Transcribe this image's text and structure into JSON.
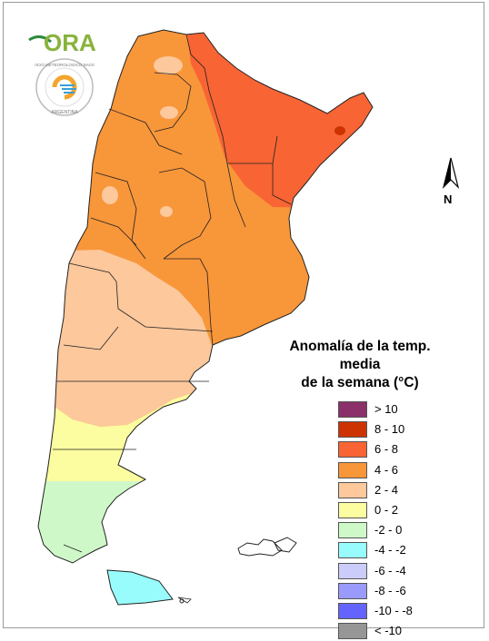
{
  "logos": {
    "ora_text": "ORA",
    "seal_text": "SERVICIO METEOROLÓGICO NACIONAL · ARGENTINA"
  },
  "legend": {
    "title_line1": "Anomalía de la temp. media",
    "title_line2": "de la semana (°C)",
    "items": [
      {
        "label": "> 10",
        "color": "#8b3068"
      },
      {
        "label": "8 - 10",
        "color": "#cc3300"
      },
      {
        "label": "6 - 8",
        "color": "#f86434"
      },
      {
        "label": "4 - 6",
        "color": "#f8963a"
      },
      {
        "label": "2 - 4",
        "color": "#fcc89c"
      },
      {
        "label": "0 - 2",
        "color": "#fcfca0"
      },
      {
        "label": "-2 - 0",
        "color": "#cff8c8"
      },
      {
        "label": "-4 - -2",
        "color": "#98fcfc"
      },
      {
        "label": "-6 - -4",
        "color": "#ccccfa"
      },
      {
        "label": "-8 - -6",
        "color": "#9a9afc"
      },
      {
        "label": "-10 - -8",
        "color": "#6464fc"
      },
      {
        "label": "< -10",
        "color": "#969696"
      }
    ]
  },
  "compass": {
    "label": "N",
    "icon": "north-arrow-icon"
  }
}
